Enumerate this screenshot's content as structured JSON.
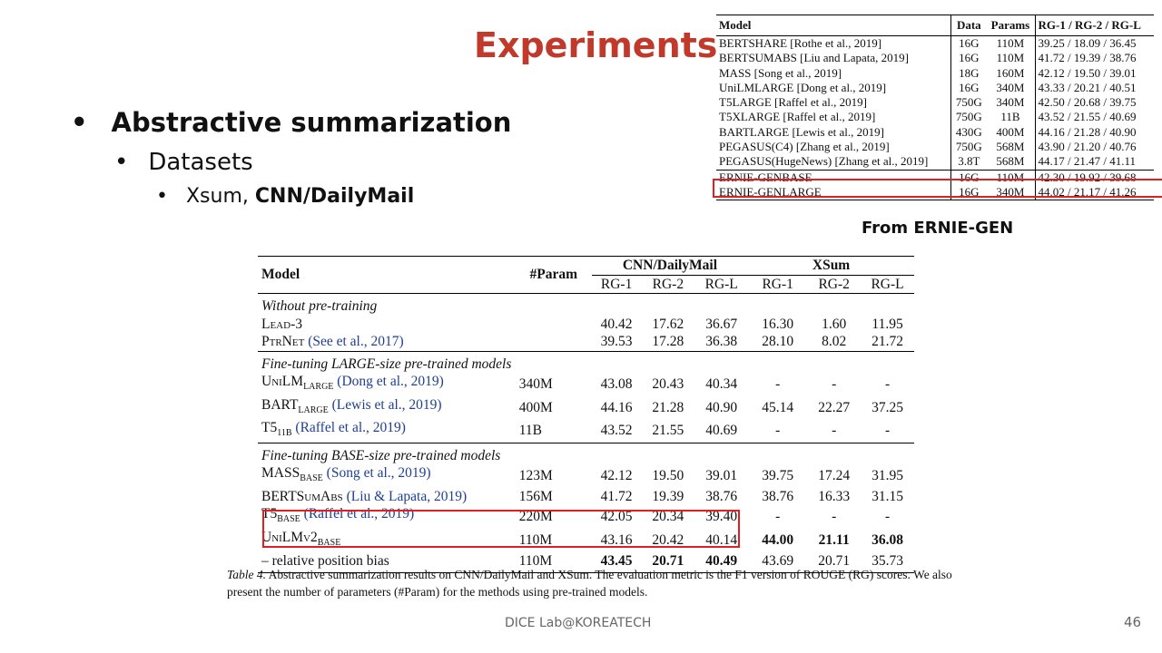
{
  "slide": {
    "title": "Experiments",
    "bullets": {
      "level1": "Abstractive summarization",
      "level2": "Datasets",
      "level3_prefix": "Xsum, ",
      "level3_bold": "CNN/DailyMail"
    },
    "footer": "DICE  Lab@KOREATECH",
    "page_number": "46"
  },
  "ernie_table": {
    "caption": "From ERNIE-GEN",
    "headers": [
      "Model",
      "Data",
      "Params",
      "RG-1 / RG-2 / RG-L"
    ],
    "rows": [
      {
        "model": "BERTSHARE [Rothe et al., 2019]",
        "data": "16G",
        "params": "110M",
        "scores": "39.25 / 18.09 / 36.45"
      },
      {
        "model": "BERTSUMABS [Liu and Lapata, 2019]",
        "data": "16G",
        "params": "110M",
        "scores": "41.72 / 19.39 / 38.76"
      },
      {
        "model": "MASS [Song et al., 2019]",
        "data": "18G",
        "params": "160M",
        "scores": "42.12 / 19.50 / 39.01"
      },
      {
        "model": "UniLMLARGE [Dong et al., 2019]",
        "data": "16G",
        "params": "340M",
        "scores": "43.33 / 20.21 / 40.51"
      },
      {
        "model": "T5LARGE [Raffel et al., 2019]",
        "data": "750G",
        "params": "340M",
        "scores": "42.50 / 20.68 / 39.75"
      },
      {
        "model": "T5XLARGE [Raffel et al., 2019]",
        "data": "750G",
        "params": "11B",
        "scores": "43.52 / 21.55 / 40.69"
      },
      {
        "model": "BARTLARGE [Lewis et al., 2019]",
        "data": "430G",
        "params": "400M",
        "scores": "44.16 / 21.28 / 40.90"
      },
      {
        "model": "PEGASUS(C4) [Zhang et al., 2019]",
        "data": "750G",
        "params": "568M",
        "scores": "43.90 / 21.20 / 40.76"
      },
      {
        "model": "PEGASUS(HugeNews) [Zhang et al., 2019]",
        "data": "3.8T",
        "params": "568M",
        "scores": "44.17 / 21.47 / 41.11"
      }
    ],
    "ernie_rows": [
      {
        "model": "ERNIE-GENBASE",
        "data": "16G",
        "params": "110M",
        "scores": "42.30 / 19.92 / 39.68"
      },
      {
        "model": "ERNIE-GENLARGE",
        "data": "16G",
        "params": "340M",
        "scores": "44.02 / 21.17 / 41.26"
      }
    ]
  },
  "main_table": {
    "headers": {
      "model": "Model",
      "param": "#Param",
      "group1": "CNN/DailyMail",
      "group2": "XSum",
      "metrics": [
        "RG-1",
        "RG-2",
        "RG-L",
        "RG-1",
        "RG-2",
        "RG-L"
      ]
    },
    "sections": [
      {
        "title": "Without pre-training",
        "rows": [
          {
            "model": "Lead-3",
            "cite": "",
            "param": "",
            "values": [
              "40.42",
              "17.62",
              "36.67",
              "16.30",
              "1.60",
              "11.95"
            ]
          },
          {
            "model": "PtrNet",
            "cite": "(See et al., 2017)",
            "param": "",
            "values": [
              "39.53",
              "17.28",
              "36.38",
              "28.10",
              "8.02",
              "21.72"
            ]
          }
        ]
      },
      {
        "title": "Fine-tuning LARGE-size pre-trained models",
        "rows": [
          {
            "model": "UniLM",
            "sub": "LARGE",
            "cite": "(Dong et al., 2019)",
            "param": "340M",
            "values": [
              "43.08",
              "20.43",
              "40.34",
              "-",
              "-",
              "-"
            ]
          },
          {
            "model": "BART",
            "sub": "LARGE",
            "cite": "(Lewis et al., 2019)",
            "param": "400M",
            "values": [
              "44.16",
              "21.28",
              "40.90",
              "45.14",
              "22.27",
              "37.25"
            ]
          },
          {
            "model": "T5",
            "sub": "11B",
            "cite": "(Raffel et al., 2019)",
            "param": "11B",
            "values": [
              "43.52",
              "21.55",
              "40.69",
              "-",
              "-",
              "-"
            ]
          }
        ]
      },
      {
        "title": "Fine-tuning BASE-size pre-trained models",
        "rows": [
          {
            "model": "MASS",
            "sub": "BASE",
            "cite": "(Song et al., 2019)",
            "param": "123M",
            "values": [
              "42.12",
              "19.50",
              "39.01",
              "39.75",
              "17.24",
              "31.95"
            ]
          },
          {
            "model": "BERTSumAbs",
            "cite": "(Liu & Lapata, 2019)",
            "param": "156M",
            "values": [
              "41.72",
              "19.39",
              "38.76",
              "38.76",
              "16.33",
              "31.15"
            ]
          },
          {
            "model": "T5",
            "sub": "BASE",
            "cite": "(Raffel et al., 2019)",
            "param": "220M",
            "values": [
              "42.05",
              "20.34",
              "39.40",
              "-",
              "-",
              "-"
            ]
          },
          {
            "model": "UniLMv2",
            "sub": "BASE",
            "cite": "",
            "param": "110M",
            "values": [
              "43.16",
              "20.42",
              "40.14",
              "44.00",
              "21.11",
              "36.08"
            ]
          },
          {
            "model": "– relative position bias",
            "cite": "",
            "param": "110M",
            "values": [
              "43.45",
              "20.71",
              "40.49",
              "43.69",
              "20.71",
              "35.73"
            ]
          }
        ]
      }
    ],
    "caption_label": "Table 4.",
    "caption_text": "Abstractive summarization results on CNN/DailyMail and XSum. The evaluation metric is the F1 version of ROUGE (RG) scores. We also present the number of parameters (#Param) for the methods using pre-trained models."
  }
}
